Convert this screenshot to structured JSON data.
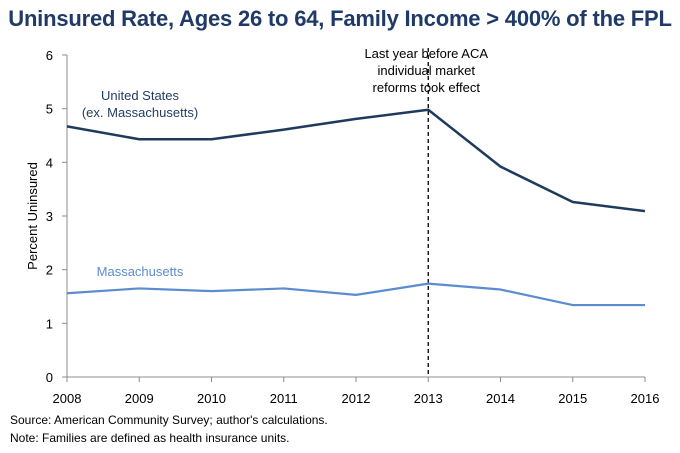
{
  "chart_data": {
    "type": "line",
    "title": "Uninsured Rate, Ages 26 to 64, Family Income > 400% of the FPL",
    "xlabel": "",
    "ylabel": "Percent Uninsured",
    "categories": [
      "2008",
      "2009",
      "2010",
      "2011",
      "2012",
      "2013",
      "2014",
      "2015",
      "2016"
    ],
    "ylim": [
      0,
      6
    ],
    "yticks": [
      0,
      1,
      2,
      3,
      4,
      5,
      6
    ],
    "grid": false,
    "series": [
      {
        "name": "United States (ex. Massachusetts)",
        "label_lines": [
          "United States",
          "(ex. Massachusetts)"
        ],
        "color": "#1f3a5f",
        "values": [
          4.67,
          4.43,
          4.43,
          4.61,
          4.81,
          4.98,
          3.92,
          3.26,
          3.09
        ]
      },
      {
        "name": "Massachusetts",
        "label_lines": [
          "Massachusetts"
        ],
        "color": "#5b8ccf",
        "values": [
          1.56,
          1.65,
          1.6,
          1.65,
          1.53,
          1.74,
          1.63,
          1.34,
          1.34
        ]
      }
    ],
    "annotation": {
      "at_category": "2013",
      "lines": [
        "Last year before ACA",
        "individual market",
        "reforms took effect"
      ]
    }
  },
  "footnotes": {
    "source": "Source: American Community Survey; author's calculations.",
    "note": "Note: Families are defined as health insurance units."
  }
}
